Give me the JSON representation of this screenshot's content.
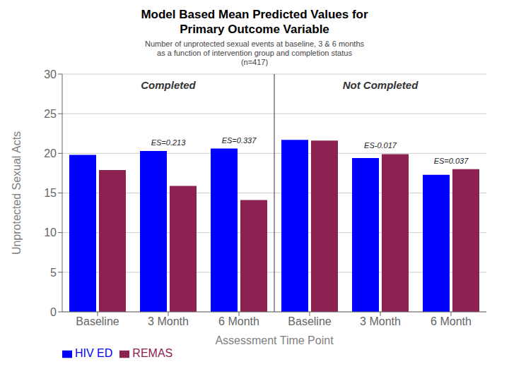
{
  "chart_data": {
    "type": "bar",
    "title": "Model Based Mean Predicted Values for\nPrimary Outcome Variable",
    "subtitle": "Number of unprotected sexual events at baseline, 3 & 6 months\nas a function of intervention group and completion status\n(n=417)",
    "xlabel": "Assessment Time Point",
    "ylabel": "Unprotected Sexual Acts",
    "categories": [
      "Baseline",
      "3 Month",
      "6 Month",
      "Baseline",
      "3 Month",
      "6 Month"
    ],
    "series": [
      {
        "name": "HIV ED",
        "color": "#0000ff",
        "values": [
          19.8,
          20.3,
          20.6,
          21.7,
          19.4,
          17.3
        ]
      },
      {
        "name": "REMAS",
        "color": "#8B2252",
        "values": [
          17.9,
          15.9,
          14.1,
          21.6,
          19.9,
          18.0
        ]
      }
    ],
    "groups": [
      "Completed",
      "Not Completed"
    ],
    "annotations": [
      "ES=0.213",
      "ES=0.337",
      "ES-0.017",
      "ES=0.037"
    ],
    "ylim": [
      0,
      30
    ],
    "yticks": [
      0,
      5,
      10,
      15,
      20,
      25,
      30
    ],
    "grid": true,
    "legend": "lower left"
  }
}
